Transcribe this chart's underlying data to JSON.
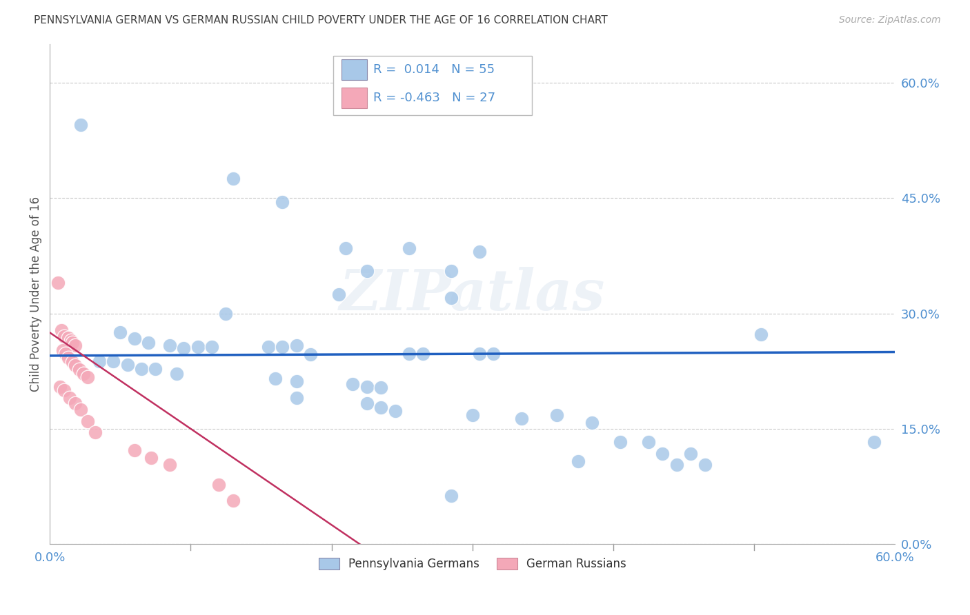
{
  "title": "PENNSYLVANIA GERMAN VS GERMAN RUSSIAN CHILD POVERTY UNDER THE AGE OF 16 CORRELATION CHART",
  "source": "Source: ZipAtlas.com",
  "ylabel": "Child Poverty Under the Age of 16",
  "xmin": 0.0,
  "xmax": 0.6,
  "ymin": 0.0,
  "ymax": 0.65,
  "yticks": [
    0.0,
    0.15,
    0.3,
    0.45,
    0.6
  ],
  "ytick_labels_right": [
    "0.0%",
    "15.0%",
    "30.0%",
    "45.0%",
    "60.0%"
  ],
  "r_blue": 0.014,
  "n_blue": 55,
  "r_pink": -0.463,
  "n_pink": 27,
  "blue_color": "#a8c8e8",
  "pink_color": "#f4a8b8",
  "line_blue_color": "#2060c0",
  "line_pink_color": "#c03060",
  "grid_color": "#c8c8c8",
  "title_color": "#404040",
  "axis_label_color": "#5090d0",
  "watermark": "ZIPatlas",
  "blue_line_y0": 0.245,
  "blue_line_slope": 0.008,
  "pink_line_y0": 0.275,
  "pink_line_x1": 0.22,
  "pink_line_y1": 0.0,
  "blue_scatter": [
    [
      0.022,
      0.545
    ],
    [
      0.13,
      0.475
    ],
    [
      0.165,
      0.445
    ],
    [
      0.21,
      0.385
    ],
    [
      0.255,
      0.385
    ],
    [
      0.225,
      0.355
    ],
    [
      0.285,
      0.355
    ],
    [
      0.305,
      0.38
    ],
    [
      0.205,
      0.325
    ],
    [
      0.285,
      0.32
    ],
    [
      0.125,
      0.3
    ],
    [
      0.05,
      0.275
    ],
    [
      0.06,
      0.267
    ],
    [
      0.07,
      0.262
    ],
    [
      0.085,
      0.258
    ],
    [
      0.095,
      0.255
    ],
    [
      0.105,
      0.257
    ],
    [
      0.115,
      0.257
    ],
    [
      0.155,
      0.257
    ],
    [
      0.165,
      0.257
    ],
    [
      0.175,
      0.258
    ],
    [
      0.185,
      0.247
    ],
    [
      0.255,
      0.248
    ],
    [
      0.265,
      0.248
    ],
    [
      0.305,
      0.248
    ],
    [
      0.315,
      0.248
    ],
    [
      0.035,
      0.238
    ],
    [
      0.045,
      0.238
    ],
    [
      0.055,
      0.233
    ],
    [
      0.065,
      0.228
    ],
    [
      0.075,
      0.228
    ],
    [
      0.09,
      0.222
    ],
    [
      0.16,
      0.215
    ],
    [
      0.175,
      0.212
    ],
    [
      0.215,
      0.208
    ],
    [
      0.225,
      0.205
    ],
    [
      0.235,
      0.204
    ],
    [
      0.175,
      0.19
    ],
    [
      0.225,
      0.183
    ],
    [
      0.235,
      0.178
    ],
    [
      0.245,
      0.173
    ],
    [
      0.3,
      0.168
    ],
    [
      0.36,
      0.168
    ],
    [
      0.335,
      0.163
    ],
    [
      0.385,
      0.158
    ],
    [
      0.405,
      0.133
    ],
    [
      0.425,
      0.133
    ],
    [
      0.435,
      0.118
    ],
    [
      0.455,
      0.118
    ],
    [
      0.375,
      0.108
    ],
    [
      0.445,
      0.103
    ],
    [
      0.465,
      0.103
    ],
    [
      0.285,
      0.063
    ],
    [
      0.585,
      0.133
    ],
    [
      0.505,
      0.273
    ]
  ],
  "pink_scatter": [
    [
      0.006,
      0.34
    ],
    [
      0.008,
      0.278
    ],
    [
      0.01,
      0.27
    ],
    [
      0.013,
      0.268
    ],
    [
      0.015,
      0.265
    ],
    [
      0.016,
      0.262
    ],
    [
      0.018,
      0.258
    ],
    [
      0.009,
      0.252
    ],
    [
      0.011,
      0.248
    ],
    [
      0.013,
      0.242
    ],
    [
      0.016,
      0.237
    ],
    [
      0.018,
      0.232
    ],
    [
      0.021,
      0.227
    ],
    [
      0.024,
      0.222
    ],
    [
      0.027,
      0.217
    ],
    [
      0.007,
      0.205
    ],
    [
      0.01,
      0.2
    ],
    [
      0.014,
      0.19
    ],
    [
      0.018,
      0.183
    ],
    [
      0.022,
      0.175
    ],
    [
      0.027,
      0.16
    ],
    [
      0.032,
      0.145
    ],
    [
      0.06,
      0.122
    ],
    [
      0.072,
      0.112
    ],
    [
      0.085,
      0.103
    ],
    [
      0.12,
      0.077
    ],
    [
      0.13,
      0.057
    ]
  ]
}
